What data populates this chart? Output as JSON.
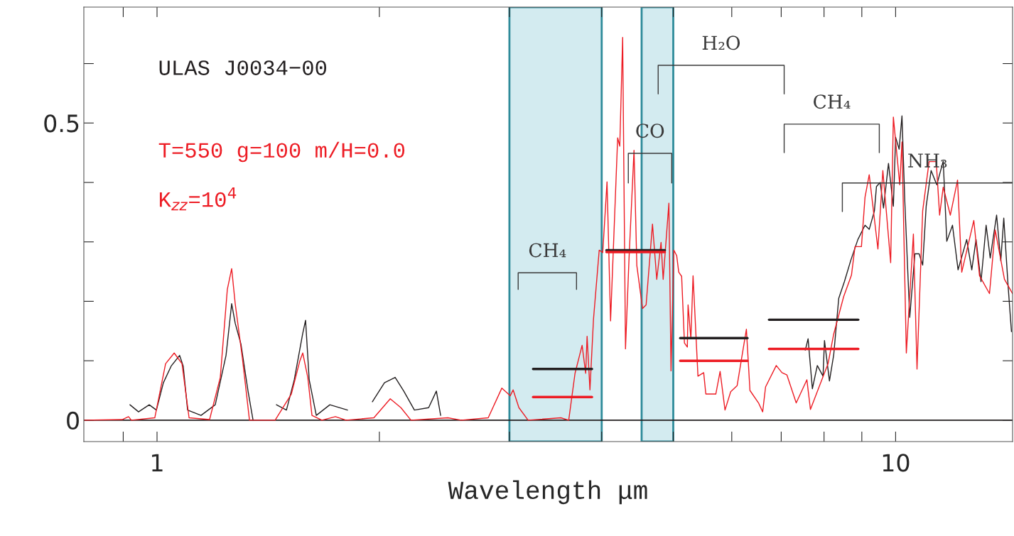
{
  "chart_data": {
    "type": "line",
    "xlabel": "Wavelength μm",
    "log": "x",
    "xlim": [
      0.796,
      14.4
    ],
    "ylim": [
      -0.036,
      0.695
    ],
    "xticks": [
      {
        "value": 0.9,
        "label": null
      },
      1,
      {
        "value": 2,
        "label": null
      },
      {
        "value": 3,
        "label": null
      },
      {
        "value": 4,
        "label": null
      },
      {
        "value": 5,
        "label": null
      },
      {
        "value": 6,
        "label": null
      },
      {
        "value": 7,
        "label": null
      },
      {
        "value": 8,
        "label": null
      },
      {
        "value": 9,
        "label": null
      },
      10
    ],
    "yticks": [
      0,
      {
        "value": 0.1,
        "label": null
      },
      {
        "value": 0.2,
        "label": null
      },
      {
        "value": 0.3,
        "label": null
      },
      {
        "value": 0.4,
        "label": null
      },
      0.5,
      {
        "value": 0.6,
        "label": null
      }
    ],
    "grid": false,
    "legend": false,
    "bands": [
      {
        "axis": "x",
        "from": 3.0,
        "to": 4.0,
        "color": "#d3ebf0"
      },
      {
        "axis": "x",
        "from": 4.53,
        "to": 5.0,
        "color": "#d3ebf0"
      }
    ],
    "ref_lines": [
      {
        "axis": "y",
        "value": 0,
        "color": "#231f20"
      }
    ],
    "series": [
      {
        "name": "ULAS J0034−00",
        "color": "#231f20",
        "x": [
          0.919,
          0.944,
          0.976,
          0.998,
          1.02,
          1.045,
          1.073,
          1.085,
          1.1,
          1.147,
          1.199,
          1.24,
          1.262,
          1.276,
          1.299,
          1.328,
          1.349,
          1.4,
          1.451,
          1.497,
          1.534,
          1.575,
          1.589,
          1.607,
          1.643,
          1.714,
          1.811,
          1.9,
          1.957,
          2.032,
          2.101,
          2.158,
          2.231,
          2.332,
          2.389,
          2.421,
          5.0,
          7.546,
          7.612,
          7.714,
          7.834,
          7.975,
          8.011,
          8.136,
          8.245,
          8.375,
          8.524,
          8.696,
          8.89,
          9.09,
          9.21,
          9.36,
          9.42,
          9.53,
          9.63,
          9.78,
          9.93,
          10.0,
          10.11,
          10.2,
          10.29,
          10.45,
          10.62,
          10.76,
          10.88,
          11.0,
          11.17,
          11.37,
          11.6,
          11.73,
          11.94,
          12.15,
          12.48,
          12.68,
          12.85,
          13.05,
          13.26,
          13.43,
          13.7,
          13.88,
          14.01,
          14.2,
          14.35
        ],
        "values": [
          0.026,
          0.014,
          0.026,
          0.017,
          0.063,
          0.091,
          0.109,
          0.091,
          0.017,
          0.008,
          0.026,
          0.109,
          0.196,
          0.163,
          0.128,
          0.049,
          0,
          null,
          0.026,
          0.017,
          0.068,
          0.146,
          0.168,
          0.068,
          0.008,
          0.026,
          0.017,
          null,
          0.031,
          0.063,
          0.072,
          0.049,
          0.017,
          0.021,
          0.049,
          0.008,
          null,
          0.118,
          0.137,
          0.053,
          0.092,
          0.074,
          0.134,
          0.066,
          0.11,
          0.205,
          0.233,
          0.269,
          0.304,
          0.328,
          0.321,
          0.352,
          0.393,
          0.4,
          0.357,
          0.432,
          0.36,
          0.476,
          0.456,
          0.512,
          0.369,
          0.173,
          0.28,
          0.28,
          0.261,
          0.36,
          0.42,
          0.396,
          0.436,
          0.301,
          0.328,
          0.253,
          0.304,
          0.253,
          0.304,
          0.233,
          0.328,
          0.273,
          0.345,
          0.268,
          0.34,
          0.226,
          0.149
        ]
      },
      {
        "name": "T=550 g=100 m/H=0.0\nK$_{zz}$=10$^{4}$",
        "color": "#ed1c24",
        "x": [
          0.796,
          0.897,
          0.915,
          0.923,
          0.993,
          1.027,
          1.055,
          1.081,
          1.105,
          1.178,
          1.218,
          1.245,
          1.262,
          1.276,
          1.305,
          1.334,
          1.445,
          1.52,
          1.561,
          1.575,
          1.6,
          1.621,
          1.672,
          1.744,
          1.803,
          1.966,
          2.069,
          2.139,
          2.207,
          2.476,
          2.582,
          2.808,
          2.93,
          3.008,
          3.035,
          3.09,
          3.18,
          3.522,
          3.609,
          3.681,
          3.763,
          3.805,
          3.822,
          3.856,
          3.899,
          3.969,
          4.013,
          4.067,
          4.112,
          4.204,
          4.232,
          4.27,
          4.308,
          4.356,
          4.424,
          4.463,
          4.543,
          4.594,
          4.686,
          4.749,
          4.813,
          4.845,
          4.932,
          4.965,
          5.009,
          5.053,
          5.086,
          5.132,
          5.177,
          5.224,
          5.236,
          5.282,
          5.318,
          5.4,
          5.497,
          5.534,
          5.709,
          5.786,
          5.875,
          5.98,
          6.101,
          6.28,
          6.35,
          6.522,
          6.607,
          6.667,
          6.893,
          7.016,
          7.126,
          7.335,
          7.583,
          7.668,
          7.889,
          8.101,
          8.245,
          8.505,
          8.714,
          8.811,
          8.989,
          9.09,
          9.21,
          9.463,
          9.61,
          9.847,
          9.93,
          10.13,
          10.2,
          10.34,
          10.57,
          10.69,
          10.88,
          11.1,
          11.35,
          11.47,
          11.6,
          11.86,
          12.13,
          12.29,
          12.76,
          12.99,
          13.4,
          13.64,
          14.04,
          14.4
        ],
        "values": [
          0,
          0.001,
          0.006,
          0,
          0.004,
          0.095,
          0.113,
          0.095,
          0.004,
          0.001,
          0.072,
          0.22,
          0.255,
          0.196,
          0.104,
          0,
          0,
          0.044,
          0.1,
          0.113,
          0.072,
          0.008,
          0,
          0.006,
          0,
          0.004,
          0.036,
          0.021,
          0,
          0.004,
          0,
          0.004,
          0.054,
          0.041,
          0.051,
          0.021,
          0,
          0.004,
          0,
          0.079,
          0.126,
          0.079,
          0.141,
          0.051,
          0.17,
          0.286,
          0.282,
          0.401,
          0.167,
          0.475,
          0.461,
          0.644,
          0.12,
          0.273,
          0.454,
          0.26,
          0.188,
          0.194,
          0.33,
          0.237,
          0.299,
          0.237,
          0.365,
          0.083,
          0.286,
          0.277,
          0.249,
          0.242,
          0.13,
          0.123,
          0.194,
          0.137,
          0.243,
          0.074,
          0.08,
          0.044,
          0.044,
          0.082,
          0.017,
          0.048,
          0.058,
          0.153,
          0.05,
          0.029,
          0.014,
          0.056,
          0.092,
          0.08,
          0.076,
          0.029,
          0.068,
          0.018,
          0.058,
          0.095,
          0.145,
          0.208,
          0.244,
          0.292,
          0.292,
          0.375,
          0.413,
          0.288,
          0.42,
          0.265,
          0.51,
          0.396,
          0.468,
          0.113,
          0.313,
          0.086,
          0.352,
          0.435,
          0.435,
          0.345,
          0.392,
          0.345,
          0.404,
          0.249,
          0.336,
          0.243,
          0.213,
          0.32,
          0.237,
          0.213
        ]
      },
      {
        "color": "#231f20",
        "x": [
          3.23,
          3.88
        ],
        "values": [
          0.086,
          0.086
        ]
      },
      {
        "color": "#ed1c24",
        "x": [
          3.23,
          3.88
        ],
        "values": [
          0.039,
          0.039
        ]
      },
      {
        "color": "#231f20",
        "x": [
          4.06,
          4.87
        ],
        "values": [
          0.286,
          0.286
        ]
      },
      {
        "color": "#ed1c24",
        "x": [
          4.06,
          4.87
        ],
        "values": [
          0.283,
          0.283
        ]
      },
      {
        "color": "#231f20",
        "x": [
          5.11,
          6.3
        ],
        "values": [
          0.138,
          0.138
        ]
      },
      {
        "color": "#ed1c24",
        "x": [
          5.11,
          6.3
        ],
        "values": [
          0.1,
          0.1
        ]
      },
      {
        "color": "#231f20",
        "x": [
          6.74,
          8.9
        ],
        "values": [
          0.169,
          0.169
        ]
      },
      {
        "color": "#ed1c24",
        "x": [
          6.74,
          8.9
        ],
        "values": [
          0.12,
          0.12
        ]
      },
      {
        "color": "#3a3a3a",
        "x": [
          3.083,
          3.083,
          3.698,
          3.698
        ],
        "values": [
          0.22,
          0.248,
          0.248,
          0.22
        ]
      },
      {
        "color": "#3a3a3a",
        "x": [
          4.346,
          4.346,
          4.976,
          4.976
        ],
        "values": [
          0.399,
          0.449,
          0.449,
          0.399
        ]
      },
      {
        "color": "#3a3a3a",
        "x": [
          4.77,
          4.77,
          7.065,
          7.065
        ],
        "values": [
          0.549,
          0.597,
          0.597,
          0.549
        ]
      },
      {
        "color": "#3a3a3a",
        "x": [
          7.065,
          7.065,
          9.504,
          9.504
        ],
        "values": [
          0.45,
          0.498,
          0.498,
          0.45
        ]
      },
      {
        "color": "#3a3a3a",
        "x": [
          8.47,
          8.47,
          14.4
        ],
        "values": [
          0.351,
          0.399,
          0.399
        ]
      }
    ],
    "annotations": [
      "CH₄",
      "CO",
      "H₂O",
      "CH₄",
      "NH₃"
    ]
  }
}
